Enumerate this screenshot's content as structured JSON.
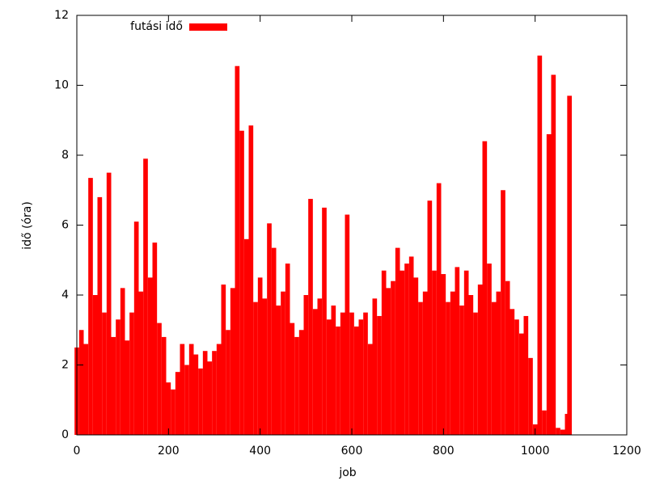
{
  "chart_data": {
    "type": "bar",
    "legend_label": "futási idő",
    "xlabel": "job",
    "ylabel": "idő (óra)",
    "color": "#ff0000",
    "x": [
      0,
      10,
      20,
      30,
      40,
      50,
      60,
      70,
      80,
      90,
      100,
      110,
      120,
      130,
      140,
      150,
      160,
      170,
      180,
      190,
      200,
      210,
      220,
      230,
      240,
      250,
      260,
      270,
      280,
      290,
      300,
      310,
      320,
      330,
      340,
      350,
      360,
      370,
      380,
      390,
      400,
      410,
      420,
      430,
      440,
      450,
      460,
      470,
      480,
      490,
      500,
      510,
      520,
      530,
      540,
      550,
      560,
      570,
      580,
      590,
      600,
      610,
      620,
      630,
      640,
      650,
      660,
      670,
      680,
      690,
      700,
      710,
      720,
      730,
      740,
      750,
      760,
      770,
      780,
      790,
      800,
      810,
      820,
      830,
      840,
      850,
      860,
      870,
      880,
      890,
      900,
      910,
      920,
      930,
      940,
      950,
      960,
      970,
      980,
      990,
      1000,
      1010,
      1020,
      1030,
      1040,
      1050,
      1060,
      1070,
      1075
    ],
    "values": [
      2.5,
      3.0,
      2.6,
      7.35,
      4.0,
      6.8,
      3.5,
      7.5,
      2.8,
      3.3,
      4.2,
      2.7,
      3.5,
      6.1,
      4.1,
      7.9,
      4.5,
      5.5,
      3.2,
      2.8,
      1.5,
      1.3,
      1.8,
      2.6,
      2.0,
      2.6,
      2.3,
      1.9,
      2.4,
      2.1,
      2.4,
      2.6,
      4.3,
      3.0,
      4.2,
      10.55,
      8.7,
      5.6,
      8.85,
      3.8,
      4.5,
      3.9,
      6.05,
      5.35,
      3.7,
      4.1,
      4.9,
      3.2,
      2.8,
      3.0,
      4.0,
      6.75,
      3.6,
      3.9,
      6.5,
      3.3,
      3.7,
      3.1,
      3.5,
      6.3,
      3.5,
      3.1,
      3.3,
      3.5,
      2.6,
      3.9,
      3.4,
      4.7,
      4.2,
      4.4,
      5.35,
      4.7,
      4.9,
      5.1,
      4.5,
      3.8,
      4.1,
      6.7,
      4.7,
      7.2,
      4.6,
      3.8,
      4.1,
      4.8,
      3.7,
      4.7,
      4.0,
      3.5,
      4.3,
      8.4,
      4.9,
      3.8,
      4.1,
      7.0,
      4.4,
      3.6,
      3.3,
      2.9,
      3.4,
      2.2,
      0.3,
      10.85,
      0.7,
      8.6,
      10.3,
      0.2,
      0.15,
      0.6,
      9.7
    ],
    "xlim": [
      0,
      1200
    ],
    "xticks": [
      0,
      200,
      400,
      600,
      800,
      1000,
      1200
    ],
    "ylim": [
      0,
      12
    ],
    "yticks": [
      0,
      2,
      4,
      6,
      8,
      10,
      12
    ],
    "legend": "top-left"
  }
}
